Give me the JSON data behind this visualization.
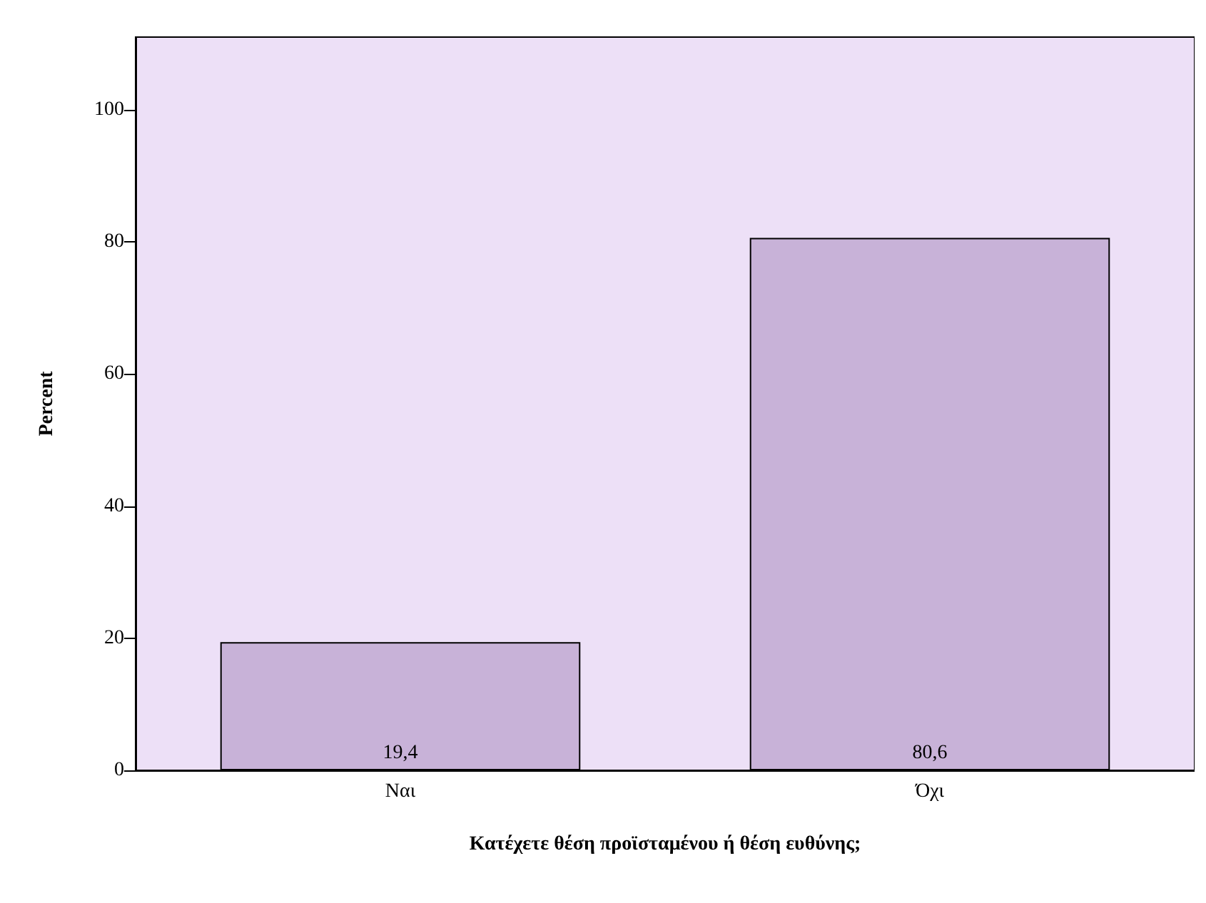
{
  "chart_data": {
    "type": "bar",
    "xlabel": "Κατέχετε θέση προϊσταμένου ή θέση ευθύνης;",
    "ylabel": "Percent",
    "categories": [
      "Ναι",
      "Όχι"
    ],
    "values": [
      19.4,
      80.6
    ],
    "value_labels": [
      "19,4",
      "80,6"
    ],
    "color": "#c8b2d8",
    "ylim": [
      0,
      111
    ],
    "yticks": [
      0,
      20,
      40,
      60,
      80,
      100
    ],
    "grid": false
  }
}
